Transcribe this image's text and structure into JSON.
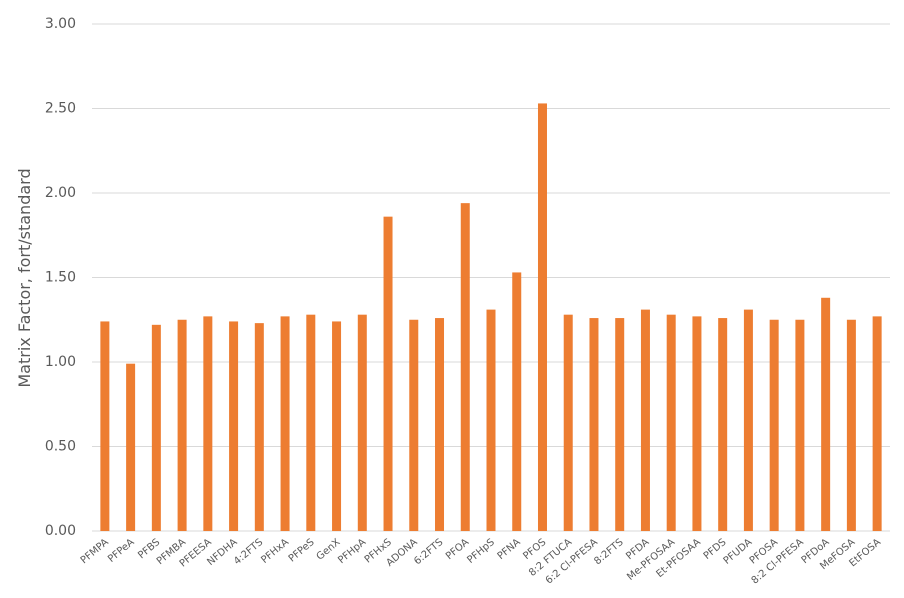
{
  "chart_data": {
    "type": "bar",
    "y_label": "Matrix Factor, fort/standard",
    "categories": [
      "PFMPA",
      "PFPeA",
      "PFBS",
      "PFMBA",
      "PFEESA",
      "NFDHA",
      "4:2FTS",
      "PFHxA",
      "PFPeS",
      "GenX",
      "PFHpA",
      "PFHxS",
      "ADONA",
      "6:2FTS",
      "PFOA",
      "PFHpS",
      "PFNA",
      "PFOS",
      "8:2 FTUCA",
      "6:2 Cl-PFESA",
      "8:2FTS",
      "PFDA",
      "Me-PFOSAA",
      "Et-PFOSAA",
      "PFDS",
      "PFUDA",
      "PFOSA",
      "8:2 Cl-PFESA",
      "PFDoA",
      "MeFOSA",
      "EtFOSA"
    ],
    "values": [
      1.24,
      0.99,
      1.22,
      1.25,
      1.27,
      1.24,
      1.23,
      1.27,
      1.28,
      1.24,
      1.28,
      1.86,
      1.25,
      1.26,
      1.94,
      1.31,
      1.53,
      2.53,
      1.28,
      1.26,
      1.26,
      1.31,
      1.28,
      1.27,
      1.26,
      1.31,
      1.25,
      1.25,
      1.38,
      1.25,
      1.27
    ],
    "color": "#ED7D31",
    "ylim": [
      0,
      3
    ],
    "yticks": [
      {
        "value": 0,
        "label": "0.00"
      },
      {
        "value": 0.5,
        "label": "0.50"
      },
      {
        "value": 1,
        "label": "1.00"
      },
      {
        "value": 1.5,
        "label": "1.50"
      },
      {
        "value": 2,
        "label": "2.00"
      },
      {
        "value": 2.5,
        "label": "2.50"
      },
      {
        "value": 3,
        "label": "3.00"
      }
    ],
    "grid": true
  }
}
